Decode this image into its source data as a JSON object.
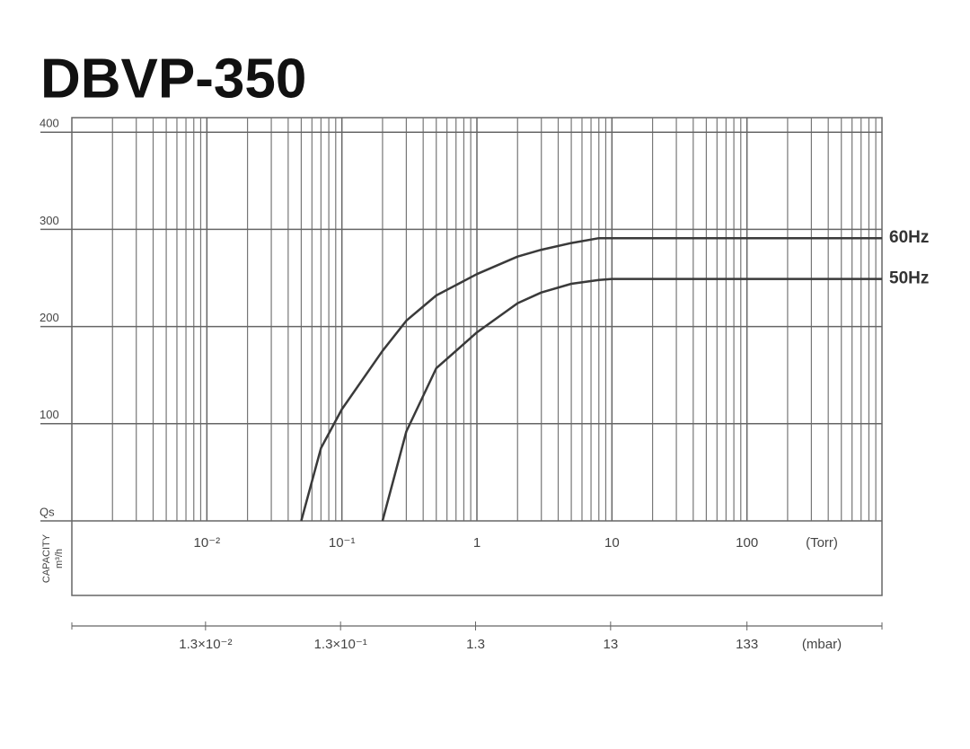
{
  "chart_data": {
    "type": "line",
    "title": "DBVP-350",
    "x": [
      0.05,
      0.07,
      0.1,
      0.2,
      0.3,
      0.5,
      1,
      2,
      3,
      5,
      8,
      10,
      100,
      1000
    ],
    "series": [
      {
        "name": "60Hz",
        "color": "#3a3a3a",
        "values": [
          0,
          75,
          115,
          175,
          206,
          232,
          254,
          272,
          279,
          286,
          291,
          291,
          291,
          291
        ]
      },
      {
        "name": "50Hz",
        "color": "#3a3a3a",
        "values": [
          null,
          null,
          null,
          0,
          92,
          157,
          194,
          224,
          235,
          244,
          248,
          249,
          249,
          249
        ]
      }
    ],
    "xscale": "log",
    "xlim": [
      0.001,
      1000
    ],
    "xticks": [
      {
        "value": 0.01,
        "label": "10⁻²"
      },
      {
        "value": 0.1,
        "label": "10⁻¹"
      },
      1,
      10,
      100
    ],
    "xlabel": "(Torr)",
    "x2lim": [
      0.00133,
      1330
    ],
    "x2ticks": [
      {
        "value": 0.013,
        "label": "1.3×10⁻²"
      },
      {
        "value": 0.13,
        "label": "1.3×10⁻¹"
      },
      1.3,
      13,
      133
    ],
    "x2label": "(mbar)",
    "ylim": [
      0,
      415
    ],
    "yticks": [
      {
        "value": 0,
        "label": "Qs"
      },
      100,
      200,
      300,
      400
    ],
    "ylabel": "CAPACITY",
    "yunit": "m³/h",
    "grid": true
  }
}
